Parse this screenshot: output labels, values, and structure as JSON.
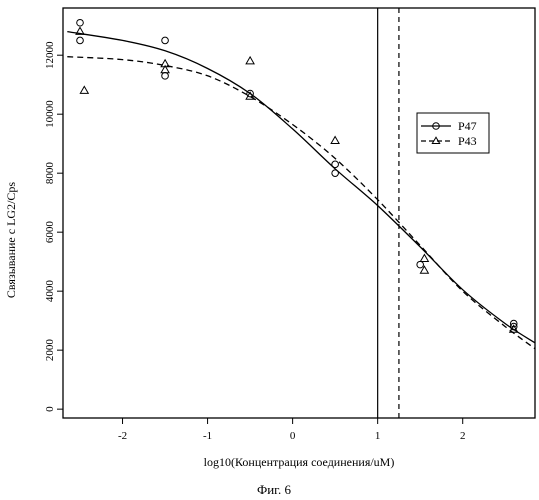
{
  "chart_data": {
    "type": "scatter",
    "xlabel": "log10(Концентрация соединения/uM)",
    "ylabel": "Связывание с LG2/Cps",
    "caption": "Фиг. 6",
    "xlim": [
      -2.7,
      2.85
    ],
    "ylim": [
      -300,
      13600
    ],
    "xticks": [
      -2,
      -1,
      0,
      1,
      2
    ],
    "yticks": [
      0,
      2000,
      4000,
      6000,
      8000,
      10000,
      12000
    ],
    "grid": false,
    "legend_position": "right",
    "vlines": [
      {
        "x": 1.0,
        "style": "solid"
      },
      {
        "x": 1.25,
        "style": "dashed"
      }
    ],
    "series": [
      {
        "name": "P47",
        "marker": "circle",
        "line_style": "solid",
        "points": [
          {
            "x": -2.5,
            "y": 13100
          },
          {
            "x": -2.5,
            "y": 12500
          },
          {
            "x": -1.5,
            "y": 12500
          },
          {
            "x": -1.5,
            "y": 11300
          },
          {
            "x": -0.5,
            "y": 10700
          },
          {
            "x": 0.5,
            "y": 8300
          },
          {
            "x": 0.5,
            "y": 8000
          },
          {
            "x": 1.5,
            "y": 4900
          },
          {
            "x": 2.6,
            "y": 2900
          },
          {
            "x": 2.6,
            "y": 2800
          }
        ],
        "curve": [
          {
            "x": -2.65,
            "y": 12800
          },
          {
            "x": -2.0,
            "y": 12500
          },
          {
            "x": -1.5,
            "y": 12150
          },
          {
            "x": -1.0,
            "y": 11550
          },
          {
            "x": -0.5,
            "y": 10700
          },
          {
            "x": 0.0,
            "y": 9500
          },
          {
            "x": 0.5,
            "y": 8150
          },
          {
            "x": 1.0,
            "y": 6900
          },
          {
            "x": 1.5,
            "y": 5500
          },
          {
            "x": 2.0,
            "y": 4050
          },
          {
            "x": 2.5,
            "y": 2900
          },
          {
            "x": 2.85,
            "y": 2250
          }
        ]
      },
      {
        "name": "P43",
        "marker": "triangle",
        "line_style": "dashed",
        "points": [
          {
            "x": -2.5,
            "y": 12800
          },
          {
            "x": -2.45,
            "y": 10800
          },
          {
            "x": -1.5,
            "y": 11700
          },
          {
            "x": -1.5,
            "y": 11500
          },
          {
            "x": -0.5,
            "y": 11800
          },
          {
            "x": -0.5,
            "y": 10600
          },
          {
            "x": 0.5,
            "y": 9100
          },
          {
            "x": 1.55,
            "y": 5100
          },
          {
            "x": 1.55,
            "y": 4700
          },
          {
            "x": 2.6,
            "y": 2700
          }
        ],
        "curve": [
          {
            "x": -2.65,
            "y": 11950
          },
          {
            "x": -2.0,
            "y": 11850
          },
          {
            "x": -1.5,
            "y": 11650
          },
          {
            "x": -1.0,
            "y": 11300
          },
          {
            "x": -0.5,
            "y": 10600
          },
          {
            "x": 0.0,
            "y": 9650
          },
          {
            "x": 0.5,
            "y": 8500
          },
          {
            "x": 1.0,
            "y": 7100
          },
          {
            "x": 1.5,
            "y": 5550
          },
          {
            "x": 2.0,
            "y": 4000
          },
          {
            "x": 2.5,
            "y": 2800
          },
          {
            "x": 2.85,
            "y": 2050
          }
        ]
      }
    ]
  }
}
